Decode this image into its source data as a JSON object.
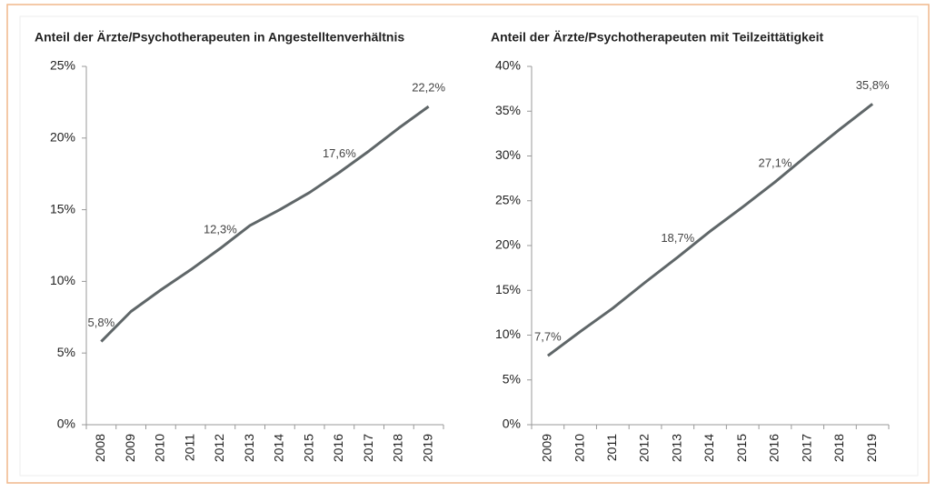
{
  "chart_data": [
    {
      "type": "line",
      "title": "Anteil der Ärzte/Psychotherapeuten in Angestelltenverhältnis",
      "categories": [
        "2008",
        "2009",
        "2010",
        "2011",
        "2012",
        "2013",
        "2014",
        "2015",
        "2016",
        "2017",
        "2018",
        "2019"
      ],
      "values": [
        5.8,
        7.9,
        9.4,
        10.8,
        12.3,
        13.9,
        15.0,
        16.2,
        17.6,
        19.1,
        20.7,
        22.2
      ],
      "value_labels": [
        "5,8%",
        null,
        null,
        null,
        "12,3%",
        null,
        null,
        null,
        "17,6%",
        null,
        null,
        "22,2%"
      ],
      "color": "#5f6668",
      "ylim": [
        0,
        25
      ],
      "yticks": [
        {
          "value": 0,
          "label": "0%"
        },
        {
          "value": 5,
          "label": "5%"
        },
        {
          "value": 10,
          "label": "10%"
        },
        {
          "value": 15,
          "label": "15%"
        },
        {
          "value": 20,
          "label": "20%"
        },
        {
          "value": 25,
          "label": "25%"
        }
      ]
    },
    {
      "type": "line",
      "title": "Anteil der Ärzte/Psychotherapeuten mit Teilzeittätigkeit",
      "categories": [
        "2009",
        "2010",
        "2011",
        "2012",
        "2013",
        "2014",
        "2015",
        "2016",
        "2017",
        "2018",
        "2019"
      ],
      "values": [
        7.7,
        10.4,
        13.0,
        15.9,
        18.7,
        21.6,
        24.3,
        27.1,
        30.1,
        33.0,
        35.8
      ],
      "value_labels": [
        "7,7%",
        null,
        null,
        null,
        "18,7%",
        null,
        null,
        "27,1%",
        null,
        null,
        "35,8%"
      ],
      "color": "#5f6668",
      "ylim": [
        0,
        40
      ],
      "yticks": [
        {
          "value": 0,
          "label": "0%"
        },
        {
          "value": 5,
          "label": "5%"
        },
        {
          "value": 10,
          "label": "10%"
        },
        {
          "value": 15,
          "label": "15%"
        },
        {
          "value": 20,
          "label": "20%"
        },
        {
          "value": 25,
          "label": "25%"
        },
        {
          "value": 30,
          "label": "30%"
        },
        {
          "value": 35,
          "label": "35%"
        },
        {
          "value": 40,
          "label": "40%"
        }
      ]
    }
  ]
}
